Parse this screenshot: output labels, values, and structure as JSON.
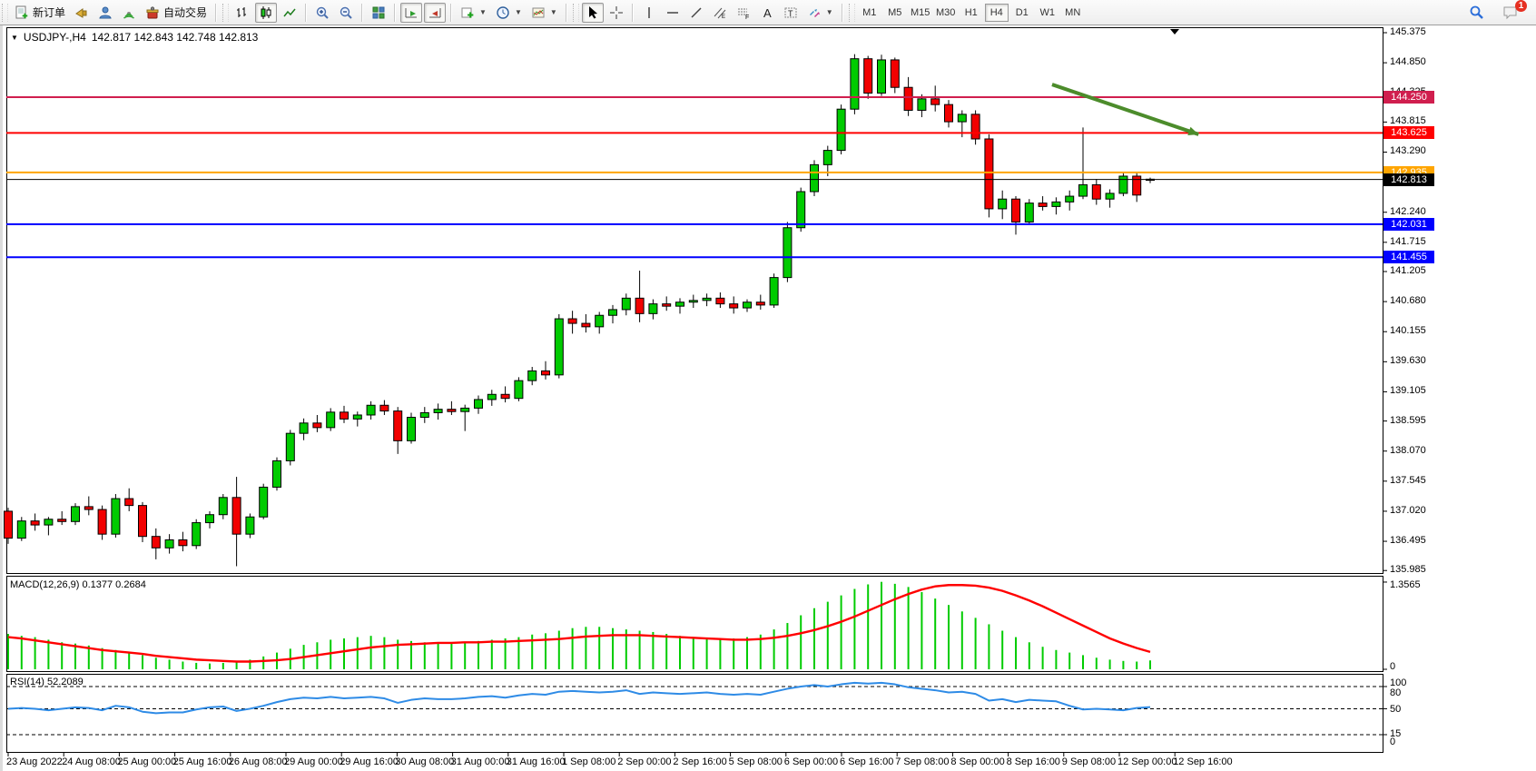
{
  "toolbar": {
    "new_order_label": "新订单",
    "auto_trading_label": "自动交易",
    "timeframes": [
      "M1",
      "M5",
      "M15",
      "M30",
      "H1",
      "H4",
      "D1",
      "W1",
      "MN"
    ],
    "active_timeframe": "H4",
    "notification_count": "1"
  },
  "chart": {
    "title_symbol": "USDJPY-,H4",
    "title_quotes": "142.817 142.843 142.748 142.813",
    "collapse_marker": "▼"
  },
  "indicators": {
    "macd_label": "MACD(12,26,9) 0.1377 0.2684",
    "rsi_label": "RSI(14) 52.2089"
  },
  "chart_data": {
    "type": "candlestick",
    "symbol": "USDJPY-",
    "timeframe": "H4",
    "last_quote": {
      "open": 142.817,
      "high": 142.843,
      "low": 142.748,
      "close": 142.813
    },
    "ylim": [
      135.84,
      145.47
    ],
    "up_color": "#00CB00",
    "down_color": "#F20000",
    "price_ticks": [
      "145.375",
      "144.850",
      "144.325",
      "143.815",
      "143.290",
      "142.765",
      "142.240",
      "141.715",
      "141.205",
      "140.680",
      "140.155",
      "139.630",
      "139.105",
      "138.595",
      "138.070",
      "137.545",
      "137.020",
      "136.495",
      "135.985"
    ],
    "x_labels": [
      "23 Aug 2022",
      "24 Aug 08:00",
      "25 Aug 00:00",
      "25 Aug 16:00",
      "26 Aug 08:00",
      "29 Aug 00:00",
      "29 Aug 16:00",
      "30 Aug 08:00",
      "31 Aug 00:00",
      "31 Aug 16:00",
      "1 Sep 08:00",
      "2 Sep 00:00",
      "2 Sep 16:00",
      "5 Sep 08:00",
      "6 Sep 00:00",
      "6 Sep 16:00",
      "7 Sep 08:00",
      "8 Sep 00:00",
      "8 Sep 16:00",
      "9 Sep 08:00",
      "12 Sep 00:00",
      "12 Sep 16:00"
    ],
    "levels": [
      {
        "label": "144.250",
        "price": 144.25,
        "color": "#d01e4e",
        "width": 2
      },
      {
        "label": "143.625",
        "price": 143.625,
        "color": "#ff0000",
        "width": 2
      },
      {
        "label": "142.935",
        "price": 142.935,
        "color": "#ffa500",
        "width": 2
      },
      {
        "label": "142.813",
        "price": 142.813,
        "color": "#000000",
        "width": 1
      },
      {
        "label": "142.031",
        "price": 142.031,
        "color": "#0000ff",
        "width": 2
      },
      {
        "label": "141.455",
        "price": 141.455,
        "color": "#0000ff",
        "width": 2
      }
    ],
    "candles": [
      [
        137.02,
        137.08,
        136.45,
        136.55
      ],
      [
        136.55,
        136.92,
        136.5,
        136.85
      ],
      [
        136.85,
        136.98,
        136.68,
        136.78
      ],
      [
        136.78,
        136.92,
        136.6,
        136.88
      ],
      [
        136.88,
        137.02,
        136.78,
        136.84
      ],
      [
        136.84,
        137.16,
        136.78,
        137.1
      ],
      [
        137.1,
        137.28,
        136.95,
        137.05
      ],
      [
        137.05,
        137.12,
        136.52,
        136.62
      ],
      [
        136.62,
        137.32,
        136.56,
        137.24
      ],
      [
        137.24,
        137.42,
        137.02,
        137.12
      ],
      [
        137.12,
        137.18,
        136.48,
        136.58
      ],
      [
        136.58,
        136.72,
        136.18,
        136.38
      ],
      [
        136.38,
        136.62,
        136.28,
        136.52
      ],
      [
        136.52,
        136.66,
        136.32,
        136.42
      ],
      [
        136.42,
        136.88,
        136.36,
        136.82
      ],
      [
        136.82,
        137.02,
        136.72,
        136.96
      ],
      [
        136.96,
        137.32,
        136.88,
        137.26
      ],
      [
        137.26,
        137.62,
        136.06,
        136.62
      ],
      [
        136.62,
        136.98,
        136.55,
        136.92
      ],
      [
        136.92,
        137.5,
        136.88,
        137.44
      ],
      [
        137.44,
        137.96,
        137.38,
        137.9
      ],
      [
        137.9,
        138.44,
        137.82,
        138.38
      ],
      [
        138.38,
        138.64,
        138.26,
        138.56
      ],
      [
        138.56,
        138.7,
        138.4,
        138.48
      ],
      [
        138.48,
        138.82,
        138.42,
        138.75
      ],
      [
        138.75,
        138.86,
        138.56,
        138.63
      ],
      [
        138.63,
        138.76,
        138.5,
        138.7
      ],
      [
        138.7,
        138.94,
        138.62,
        138.87
      ],
      [
        138.87,
        138.96,
        138.7,
        138.77
      ],
      [
        138.77,
        138.84,
        138.02,
        138.25
      ],
      [
        138.25,
        138.74,
        138.2,
        138.66
      ],
      [
        138.66,
        138.84,
        138.56,
        138.74
      ],
      [
        138.74,
        138.9,
        138.62,
        138.8
      ],
      [
        138.8,
        138.94,
        138.7,
        138.76
      ],
      [
        138.76,
        138.88,
        138.42,
        138.82
      ],
      [
        138.82,
        139.04,
        138.72,
        138.97
      ],
      [
        138.97,
        139.14,
        138.86,
        139.06
      ],
      [
        139.06,
        139.2,
        138.92,
        138.99
      ],
      [
        138.99,
        139.36,
        138.94,
        139.3
      ],
      [
        139.3,
        139.54,
        139.22,
        139.47
      ],
      [
        139.47,
        139.64,
        139.32,
        139.4
      ],
      [
        139.4,
        140.46,
        139.34,
        140.38
      ],
      [
        140.38,
        140.52,
        140.12,
        140.3
      ],
      [
        140.3,
        140.46,
        140.14,
        140.24
      ],
      [
        140.24,
        140.5,
        140.12,
        140.44
      ],
      [
        140.44,
        140.62,
        140.3,
        140.54
      ],
      [
        140.54,
        140.82,
        140.44,
        140.74
      ],
      [
        140.74,
        141.22,
        140.32,
        140.47
      ],
      [
        140.47,
        140.72,
        140.37,
        140.64
      ],
      [
        140.64,
        140.77,
        140.52,
        140.6
      ],
      [
        140.6,
        140.74,
        140.47,
        140.67
      ],
      [
        140.67,
        140.8,
        140.57,
        140.7
      ],
      [
        140.7,
        140.82,
        140.6,
        140.74
      ],
      [
        140.74,
        140.84,
        140.57,
        140.64
      ],
      [
        140.64,
        140.77,
        140.47,
        140.57
      ],
      [
        140.57,
        140.72,
        140.5,
        140.67
      ],
      [
        140.67,
        140.8,
        140.54,
        140.62
      ],
      [
        140.62,
        141.17,
        140.57,
        141.1
      ],
      [
        141.1,
        142.07,
        141.02,
        141.97
      ],
      [
        141.97,
        142.67,
        141.9,
        142.6
      ],
      [
        142.6,
        143.15,
        142.52,
        143.07
      ],
      [
        143.07,
        143.4,
        142.87,
        143.32
      ],
      [
        143.32,
        144.12,
        143.25,
        144.04
      ],
      [
        144.04,
        145.0,
        143.95,
        144.92
      ],
      [
        144.92,
        144.97,
        144.22,
        144.32
      ],
      [
        144.32,
        144.99,
        144.27,
        144.9
      ],
      [
        144.9,
        144.94,
        144.32,
        144.42
      ],
      [
        144.42,
        144.6,
        143.92,
        144.02
      ],
      [
        144.02,
        144.3,
        143.9,
        144.22
      ],
      [
        144.22,
        144.45,
        144.0,
        144.12
      ],
      [
        144.12,
        144.2,
        143.72,
        143.82
      ],
      [
        143.82,
        144.02,
        143.55,
        143.95
      ],
      [
        143.95,
        144.02,
        143.42,
        143.52
      ],
      [
        143.52,
        143.6,
        142.15,
        142.3
      ],
      [
        142.3,
        142.62,
        142.12,
        142.47
      ],
      [
        142.47,
        142.52,
        141.85,
        142.07
      ],
      [
        142.07,
        142.47,
        142.02,
        142.4
      ],
      [
        142.4,
        142.52,
        142.27,
        142.34
      ],
      [
        142.34,
        142.5,
        142.2,
        142.42
      ],
      [
        142.42,
        142.62,
        142.27,
        142.52
      ],
      [
        142.52,
        143.72,
        142.47,
        142.72
      ],
      [
        142.72,
        142.82,
        142.37,
        142.47
      ],
      [
        142.47,
        142.64,
        142.32,
        142.57
      ],
      [
        142.57,
        142.94,
        142.52,
        142.87
      ],
      [
        142.87,
        142.94,
        142.42,
        142.54
      ],
      [
        142.817,
        142.843,
        142.748,
        142.813
      ]
    ],
    "macd": {
      "name": "MACD(12,26,9)",
      "value": 0.1377,
      "signal_value": 0.2684,
      "max_label": "1.3565",
      "min_label": "0",
      "histogram": [
        0.55,
        0.52,
        0.5,
        0.46,
        0.42,
        0.4,
        0.37,
        0.33,
        0.3,
        0.27,
        0.22,
        0.18,
        0.15,
        0.12,
        0.1,
        0.09,
        0.1,
        0.12,
        0.15,
        0.2,
        0.26,
        0.32,
        0.38,
        0.42,
        0.46,
        0.48,
        0.5,
        0.52,
        0.5,
        0.46,
        0.44,
        0.42,
        0.4,
        0.4,
        0.42,
        0.44,
        0.46,
        0.48,
        0.5,
        0.54,
        0.56,
        0.6,
        0.64,
        0.66,
        0.66,
        0.64,
        0.62,
        0.6,
        0.58,
        0.55,
        0.52,
        0.5,
        0.48,
        0.47,
        0.48,
        0.5,
        0.54,
        0.62,
        0.72,
        0.84,
        0.95,
        1.05,
        1.15,
        1.25,
        1.32,
        1.36,
        1.33,
        1.28,
        1.2,
        1.1,
        1.0,
        0.9,
        0.8,
        0.7,
        0.6,
        0.5,
        0.42,
        0.35,
        0.3,
        0.26,
        0.22,
        0.18,
        0.15,
        0.13,
        0.12,
        0.1377
      ],
      "signal": [
        0.5,
        0.48,
        0.45,
        0.42,
        0.39,
        0.36,
        0.33,
        0.3,
        0.28,
        0.26,
        0.24,
        0.21,
        0.19,
        0.17,
        0.15,
        0.14,
        0.13,
        0.12,
        0.12,
        0.13,
        0.14,
        0.16,
        0.19,
        0.22,
        0.25,
        0.28,
        0.31,
        0.34,
        0.36,
        0.38,
        0.39,
        0.4,
        0.41,
        0.41,
        0.42,
        0.42,
        0.43,
        0.43,
        0.44,
        0.45,
        0.46,
        0.47,
        0.49,
        0.51,
        0.52,
        0.53,
        0.53,
        0.53,
        0.52,
        0.51,
        0.5,
        0.49,
        0.48,
        0.47,
        0.46,
        0.46,
        0.47,
        0.49,
        0.52,
        0.56,
        0.61,
        0.67,
        0.74,
        0.82,
        0.91,
        1.0,
        1.09,
        1.17,
        1.24,
        1.29,
        1.31,
        1.31,
        1.3,
        1.27,
        1.22,
        1.15,
        1.07,
        0.98,
        0.88,
        0.78,
        0.68,
        0.58,
        0.48,
        0.4,
        0.33,
        0.27
      ]
    },
    "rsi": {
      "name": "RSI(14)",
      "value": 52.2089,
      "scale_labels": [
        "100",
        "80",
        "50",
        "15",
        "0"
      ],
      "dashed_levels": [
        80,
        50,
        15
      ],
      "values": [
        50,
        51,
        50,
        48,
        50,
        52,
        51,
        48,
        54,
        52,
        46,
        44,
        45,
        45,
        49,
        52,
        53,
        47,
        50,
        54,
        59,
        63,
        65,
        64,
        66,
        64,
        65,
        66,
        64,
        58,
        62,
        64,
        63,
        63,
        64,
        66,
        67,
        65,
        68,
        70,
        69,
        73,
        74,
        73,
        72,
        73,
        75,
        70,
        72,
        71,
        70,
        71,
        72,
        70,
        69,
        70,
        69,
        73,
        77,
        80,
        82,
        80,
        83,
        85,
        84,
        85,
        83,
        79,
        77,
        75,
        72,
        73,
        70,
        61,
        63,
        59,
        62,
        61,
        60,
        54,
        49,
        50,
        49,
        48,
        51,
        52.2
      ]
    },
    "annotation_arrow": {
      "x1_bar": 77.7,
      "price1": 144.47,
      "x2_bar": 88.6,
      "price2": 143.6,
      "color": "#4c8c2b"
    }
  }
}
